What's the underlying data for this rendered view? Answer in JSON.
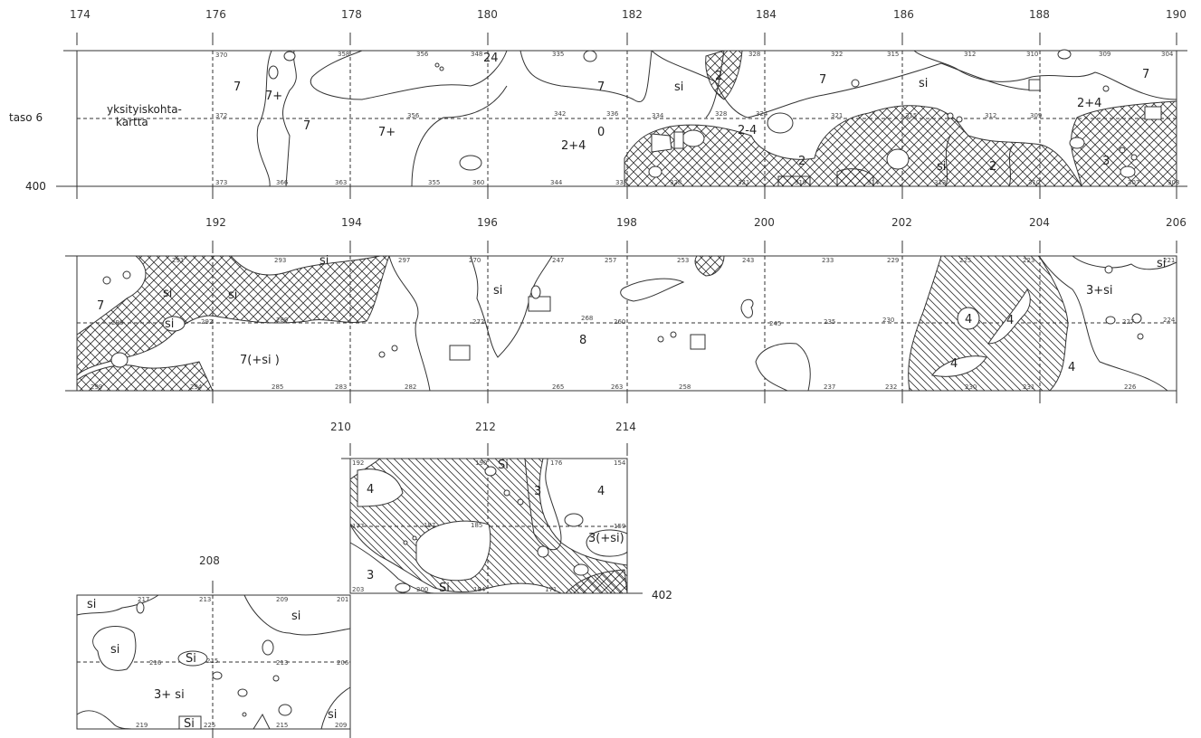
{
  "plan": {
    "level_label": "taso 6",
    "y_label_400": "400",
    "y_label_402": "402",
    "private_map_note_line1": "yksityiskohta-",
    "private_map_note_line2": "kartta"
  },
  "strips": [
    {
      "id": "strip1",
      "ticks": [
        "174",
        "176",
        "178",
        "180",
        "182",
        "184",
        "186",
        "188",
        "190"
      ],
      "regions": [
        {
          "text": "7"
        },
        {
          "text": "7+"
        },
        {
          "text": "7"
        },
        {
          "text": "7+"
        },
        {
          "text": "7"
        },
        {
          "text": "2+4"
        },
        {
          "text": "0"
        },
        {
          "text": "si"
        },
        {
          "text": "2"
        },
        {
          "text": "7"
        },
        {
          "text": "2-4"
        },
        {
          "text": "2"
        },
        {
          "text": "si"
        },
        {
          "text": "2"
        },
        {
          "text": "si"
        },
        {
          "text": "2+4"
        },
        {
          "text": "3"
        },
        {
          "text": "7"
        },
        {
          "text": "24"
        }
      ]
    },
    {
      "id": "strip2",
      "ticks": [
        "192",
        "194",
        "196",
        "198",
        "200",
        "202",
        "204",
        "206"
      ],
      "regions": [
        {
          "text": "7"
        },
        {
          "text": "si"
        },
        {
          "text": "si"
        },
        {
          "text": "si"
        },
        {
          "text": "7(+si )"
        },
        {
          "text": "si"
        },
        {
          "text": "8"
        },
        {
          "text": "4"
        },
        {
          "text": "4"
        },
        {
          "text": "4"
        },
        {
          "text": "4"
        },
        {
          "text": "3+si"
        },
        {
          "text": "si"
        },
        {
          "text": "si"
        }
      ]
    },
    {
      "id": "strip3",
      "ticks": [
        "210",
        "212",
        "214"
      ],
      "regions": [
        {
          "text": "4"
        },
        {
          "text": "3"
        },
        {
          "text": "4"
        },
        {
          "text": "3(+si)"
        },
        {
          "text": "3"
        },
        {
          "text": "Si"
        },
        {
          "text": "Si"
        }
      ]
    },
    {
      "id": "strip4",
      "ticks": [
        "208"
      ],
      "regions": [
        {
          "text": "si"
        },
        {
          "text": "si"
        },
        {
          "text": "si"
        },
        {
          "text": "3+ si"
        },
        {
          "text": "Si"
        },
        {
          "text": "si"
        },
        {
          "text": "Si"
        }
      ]
    }
  ]
}
